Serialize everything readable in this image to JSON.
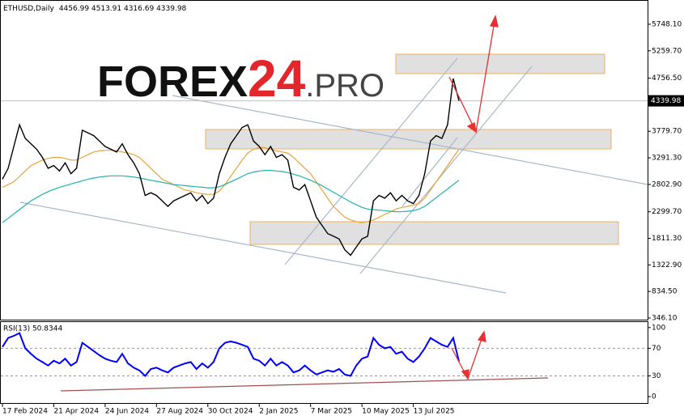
{
  "watermark": {
    "parts": [
      "FOREX",
      "24",
      ".PRO"
    ]
  },
  "chart_data": {
    "type": "line",
    "title": "ETHUSD,Daily",
    "subtitle": "4456.99 4513.91 4316.69 4339.98",
    "last_price": 4339.98,
    "categories": [
      "17 Feb 2024",
      null,
      null,
      null,
      null,
      null,
      null,
      null,
      null,
      "21 Apr 2024",
      null,
      null,
      null,
      null,
      null,
      null,
      null,
      null,
      "24 Jun 2024",
      null,
      null,
      null,
      null,
      null,
      null,
      null,
      null,
      "27 Aug 2024",
      null,
      null,
      null,
      null,
      null,
      null,
      null,
      null,
      "30 Oct 2024",
      null,
      null,
      null,
      null,
      null,
      null,
      null,
      null,
      "2 Jan 2025",
      null,
      null,
      null,
      null,
      null,
      null,
      null,
      null,
      "7 Mar 2025",
      null,
      null,
      null,
      null,
      null,
      null,
      null,
      null,
      "10 May 2025",
      null,
      null,
      null,
      null,
      null,
      null,
      null,
      null,
      "13 Jul 2025",
      null,
      null,
      null,
      null,
      null,
      null,
      null,
      null
    ],
    "series": [
      {
        "color": "#000000",
        "values": [
          2900,
          3100,
          3500,
          3900,
          3650,
          3550,
          3450,
          3300,
          3100,
          3150,
          3050,
          3200,
          3000,
          3100,
          3800,
          3750,
          3700,
          3600,
          3500,
          3450,
          3400,
          3550,
          3350,
          3200,
          3000,
          2600,
          2650,
          2600,
          2500,
          2400,
          2500,
          2550,
          2600,
          2650,
          2500,
          2600,
          2450,
          2550,
          3000,
          3300,
          3550,
          3700,
          3850,
          3900,
          3600,
          3500,
          3350,
          3500,
          3300,
          3350,
          3250,
          2750,
          2700,
          2800,
          2500,
          2200,
          2050,
          1900,
          1850,
          1800,
          1600,
          1500,
          1650,
          1800,
          1850,
          2500,
          2600,
          2550,
          2650,
          2500,
          2600,
          2500,
          2450,
          2600,
          3000,
          3600,
          3700,
          3650,
          3900,
          4750,
          4340
        ]
      },
      {
        "color": "#e8a33c",
        "values": [
          2750,
          2800,
          2850,
          2950,
          3050,
          3150,
          3200,
          3250,
          3280,
          3300,
          3300,
          3280,
          3250,
          3250,
          3300,
          3350,
          3400,
          3420,
          3430,
          3430,
          3420,
          3400,
          3380,
          3350,
          3300,
          3200,
          3100,
          3000,
          2900,
          2850,
          2800,
          2750,
          2700,
          2680,
          2650,
          2630,
          2620,
          2620,
          2680,
          2800,
          2950,
          3100,
          3250,
          3380,
          3450,
          3480,
          3480,
          3450,
          3420,
          3400,
          3380,
          3300,
          3200,
          3100,
          3000,
          2850,
          2700,
          2550,
          2400,
          2300,
          2200,
          2150,
          2120,
          2100,
          2120,
          2150,
          2200,
          2250,
          2300,
          2350,
          2380,
          2400,
          2420,
          2450,
          2550,
          2700,
          2850,
          3000,
          3150,
          3300,
          3450
        ]
      },
      {
        "color": "#20b2aa",
        "values": [
          2100,
          2180,
          2260,
          2340,
          2420,
          2500,
          2560,
          2620,
          2670,
          2710,
          2750,
          2780,
          2810,
          2840,
          2870,
          2900,
          2920,
          2940,
          2950,
          2960,
          2960,
          2960,
          2950,
          2940,
          2920,
          2900,
          2880,
          2860,
          2840,
          2820,
          2800,
          2790,
          2780,
          2770,
          2760,
          2750,
          2740,
          2740,
          2760,
          2800,
          2850,
          2900,
          2950,
          3000,
          3030,
          3050,
          3060,
          3060,
          3050,
          3040,
          3020,
          2990,
          2960,
          2920,
          2880,
          2830,
          2780,
          2720,
          2660,
          2600,
          2540,
          2480,
          2430,
          2380,
          2350,
          2340,
          2330,
          2320,
          2310,
          2300,
          2300,
          2310,
          2320,
          2350,
          2400,
          2480,
          2560,
          2640,
          2720,
          2800,
          2880
        ]
      }
    ],
    "ylim": [
      316,
      6194
    ],
    "yticks": [
      {
        "value": 5748.1,
        "label": "5748.10"
      },
      {
        "value": 5259.7,
        "label": "5259.70"
      },
      {
        "value": 4756.5,
        "label": "4756.50"
      },
      {
        "value": 3779.7,
        "label": "3779.70"
      },
      {
        "value": 3291.3,
        "label": "3291.30"
      },
      {
        "value": 2802.9,
        "label": "2802.90"
      },
      {
        "value": 2299.7,
        "label": "2299.70"
      },
      {
        "value": 1811.3,
        "label": "1811.30"
      },
      {
        "value": 1322.9,
        "label": "1322.90"
      },
      {
        "value": 834.5,
        "label": "834.50"
      },
      {
        "value": 346.1,
        "label": "346.10"
      }
    ],
    "indicator": {
      "title": "RSI(13) 50.8344",
      "color": "#0000ff",
      "values": [
        72,
        85,
        88,
        92,
        70,
        62,
        55,
        50,
        45,
        52,
        48,
        55,
        45,
        50,
        78,
        72,
        66,
        60,
        55,
        52,
        50,
        62,
        48,
        42,
        38,
        30,
        40,
        42,
        38,
        35,
        42,
        45,
        48,
        50,
        40,
        48,
        42,
        50,
        70,
        78,
        80,
        78,
        75,
        72,
        55,
        52,
        45,
        55,
        45,
        50,
        45,
        35,
        38,
        45,
        38,
        32,
        35,
        38,
        36,
        40,
        32,
        30,
        45,
        55,
        58,
        85,
        75,
        70,
        72,
        62,
        65,
        55,
        50,
        58,
        70,
        85,
        80,
        75,
        72,
        85,
        51
      ],
      "ylim": [
        -10.5,
        108
      ],
      "yticks": [
        100,
        70,
        30,
        0
      ],
      "levels": [
        70,
        30
      ]
    }
  }
}
